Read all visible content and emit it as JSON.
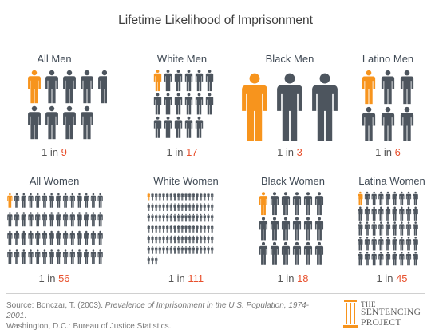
{
  "title": "Lifetime Likelihood of Imprisonment",
  "chart_data": [
    {
      "type": "pictogram",
      "label": "All Men",
      "ratio_prefix": "1 in",
      "ratio_value": 9,
      "highlighted": 1,
      "total": 9,
      "highlight_color": "#f7941d",
      "base_color": "#4d555e"
    },
    {
      "type": "pictogram",
      "label": "White Men",
      "ratio_prefix": "1 in",
      "ratio_value": 17,
      "highlighted": 1,
      "total": 17,
      "highlight_color": "#f7941d",
      "base_color": "#4d555e"
    },
    {
      "type": "pictogram",
      "label": "Black Men",
      "ratio_prefix": "1 in",
      "ratio_value": 3,
      "highlighted": 1,
      "total": 3,
      "highlight_color": "#f7941d",
      "base_color": "#4d555e"
    },
    {
      "type": "pictogram",
      "label": "Latino Men",
      "ratio_prefix": "1 in",
      "ratio_value": 6,
      "highlighted": 1,
      "total": 6,
      "highlight_color": "#f7941d",
      "base_color": "#4d555e"
    },
    {
      "type": "pictogram",
      "label": "All Women",
      "ratio_prefix": "1 in",
      "ratio_value": 56,
      "highlighted": 1,
      "total": 56,
      "highlight_color": "#f7941d",
      "base_color": "#4d555e"
    },
    {
      "type": "pictogram",
      "label": "White Women",
      "ratio_prefix": "1 in",
      "ratio_value": 111,
      "highlighted": 1,
      "total": 111,
      "highlight_color": "#f7941d",
      "base_color": "#4d555e"
    },
    {
      "type": "pictogram",
      "label": "Black Women",
      "ratio_prefix": "1 in",
      "ratio_value": 18,
      "highlighted": 1,
      "total": 18,
      "highlight_color": "#f7941d",
      "base_color": "#4d555e"
    },
    {
      "type": "pictogram",
      "label": "Latina Women",
      "ratio_prefix": "1 in",
      "ratio_value": 45,
      "highlighted": 1,
      "total": 45,
      "highlight_color": "#f7941d",
      "base_color": "#4d555e"
    }
  ],
  "source": {
    "prefix": "Source: Bonczar, T. (2003). ",
    "title": "Prevalence of Imprisonment in the U.S. Population, 1974-2001",
    "suffix": ".",
    "line2": "Washington, D.C.: Bureau of Justice Statistics."
  },
  "logo": {
    "line1": "THE",
    "line2": "SENTENCING",
    "line3": "PROJECT",
    "color": "#f7941d"
  }
}
